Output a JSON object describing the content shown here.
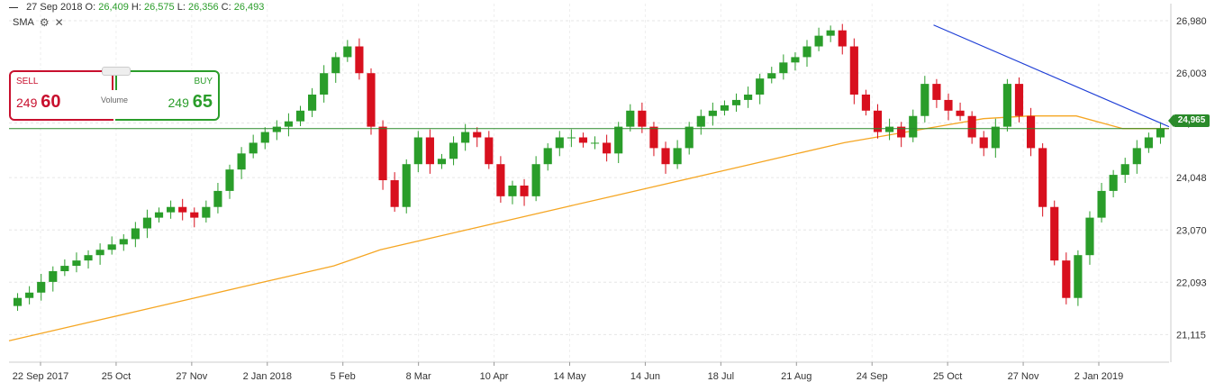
{
  "header": {
    "date": "27 Sep 2018",
    "open_label": "O:",
    "open": "26,409",
    "high_label": "H:",
    "high": "26,575",
    "low_label": "L:",
    "low": "26,356",
    "close_label": "C:",
    "close": "26,493"
  },
  "indicator": {
    "label": "SMA",
    "settings_icon": "gear-icon",
    "close_icon": "close-icon"
  },
  "trade": {
    "sell_label": "SELL",
    "sell_big": "249",
    "sell_small": "60",
    "buy_label": "BUY",
    "buy_big": "249",
    "buy_small": "65",
    "volume_label": "Volume"
  },
  "current_price": "24,965",
  "colors": {
    "up": "#2a9d2a",
    "down": "#d8101e",
    "sma": "#f5a623",
    "trend": "#1f3fd6",
    "price_line": "#2a8a2a"
  },
  "chart_data": {
    "type": "candlestick",
    "y_ticks": [
      "26,980",
      "26,003",
      "25,070",
      "24,048",
      "23,070",
      "22,093",
      "21,115"
    ],
    "y_tick_values": [
      26980,
      26003,
      25070,
      24048,
      23070,
      22093,
      21115
    ],
    "ylim": [
      20600,
      27300
    ],
    "x_ticks": [
      "22 Sep 2017",
      "25 Oct",
      "27 Nov",
      "2 Jan 2018",
      "5 Feb",
      "8 Mar",
      "10 Apr",
      "14 May",
      "14 Jun",
      "18 Jul",
      "21 Aug",
      "24 Sep",
      "25 Oct",
      "27 Nov",
      "2 Jan 2019"
    ],
    "closes": [
      21800,
      21900,
      22100,
      22300,
      22400,
      22500,
      22600,
      22700,
      22800,
      22900,
      23100,
      23300,
      23400,
      23500,
      23400,
      23300,
      23500,
      23800,
      24200,
      24500,
      24700,
      24900,
      25000,
      25100,
      25300,
      25600,
      26000,
      26300,
      26500,
      26000,
      25000,
      24000,
      23500,
      24300,
      24800,
      24300,
      24400,
      24700,
      24900,
      24800,
      24300,
      23700,
      23900,
      23700,
      24300,
      24600,
      24800,
      24800,
      24700,
      24700,
      24500,
      25000,
      25300,
      25000,
      24600,
      24300,
      24600,
      25000,
      25200,
      25300,
      25400,
      25500,
      25600,
      25900,
      26000,
      26200,
      26300,
      26500,
      26700,
      26800,
      26500,
      25600,
      25300,
      24900,
      25000,
      24800,
      25200,
      25800,
      25500,
      25300,
      25200,
      24800,
      24600,
      25000,
      25800,
      25200,
      24600,
      23500,
      22500,
      21800,
      22600,
      23300,
      23800,
      24100,
      24300,
      24600,
      24800,
      24965
    ],
    "sma_values": [
      21000,
      21200,
      21400,
      21600,
      21800,
      22000,
      22200,
      22400,
      22700,
      22900,
      23100,
      23300,
      23500,
      23700,
      23900,
      24100,
      24300,
      24500,
      24700,
      24850,
      25000,
      25150,
      25200,
      25200,
      24965,
      24965
    ],
    "trendline": [
      [
        0.797,
        26900
      ],
      [
        1.0,
        25000
      ]
    ],
    "price_line": 24965
  }
}
